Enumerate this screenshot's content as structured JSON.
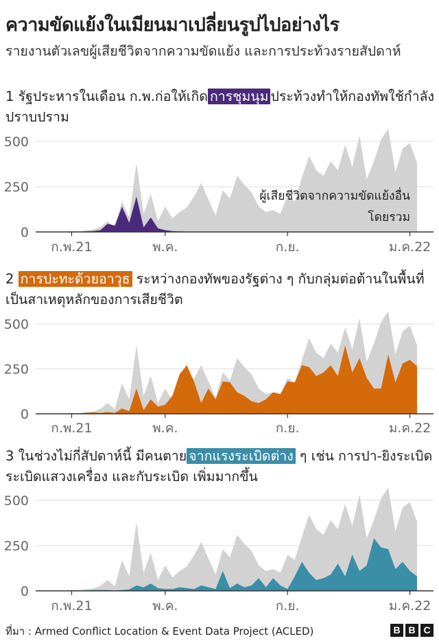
{
  "header": {
    "title": "ความขัดแย้งในเมียนมาเปลี่ยนรูปไปอย่างไร",
    "subtitle": "รายงานตัวเลขผู้เสียชีวิตจากความขัดแย้ง และการประท้วงรายสัปดาห์"
  },
  "panels": [
    {
      "pre": "1 รัฐประหารในเดือน ก.พ.ก่อให้เกิด",
      "highlight": "การชุมนุม",
      "post": "ประท้วงทำให้กองทัพใช้กำลังปราบปราม"
    },
    {
      "pre": "2 ",
      "highlight": "การปะทะด้วยอาวุธ",
      "post": " ระหว่างกองทัพของรัฐต่าง ๆ กับกลุ่มต่อต้านในพื้นที่ เป็นสาเหตุหลักของการเสียชีวิต"
    },
    {
      "pre": "3 ในช่วงไม่กี่สัปดาห์นี้ มีคนตาย",
      "highlight": "จากแรงระเบิดต่าง",
      "post": " ๆ เช่น การปา-ยิงระเบิด  ระเบิดแสวงเครื่อง และกับระเบิด เพิ่มมากขึ้น"
    }
  ],
  "annotation": {
    "line1": "ผู้เสียชีวิตจากความขัดแย้งอื่น",
    "line2": "โดยรวม"
  },
  "footer": {
    "source": "ที่มา : Armed Conflict Location & Event Data Project (ACLED)",
    "logo": [
      "B",
      "B",
      "C"
    ]
  },
  "colors": {
    "total": "#d2d2d2",
    "protests": "#4b2a7b",
    "battles": "#d46a0a",
    "explosions": "#3a8ea8",
    "grid": "#dddddd",
    "baseline": "#333333"
  },
  "chart_data": [
    {
      "type": "area",
      "ylim": [
        0,
        500
      ],
      "yticks": [
        0,
        250,
        500
      ],
      "xticks": [
        {
          "label": "ก.พ.21",
          "week": 5
        },
        {
          "label": "พ.ค.",
          "week": 18
        },
        {
          "label": "ก.ย.",
          "week": 35
        },
        {
          "label": "ม.ค.22",
          "week": 52
        }
      ],
      "x": [
        0,
        1,
        2,
        3,
        4,
        5,
        6,
        7,
        8,
        9,
        10,
        11,
        12,
        13,
        14,
        15,
        16,
        17,
        18,
        19,
        20,
        21,
        22,
        23,
        24,
        25,
        26,
        27,
        28,
        29,
        30,
        31,
        32,
        33,
        34,
        35,
        36,
        37,
        38,
        39,
        40,
        41,
        42,
        43,
        44,
        45,
        46,
        47,
        48,
        49,
        50,
        51,
        52,
        53
      ],
      "series": [
        {
          "key": "total",
          "values": [
            0,
            0,
            0,
            0,
            2,
            5,
            3,
            10,
            12,
            28,
            60,
            25,
            170,
            80,
            380,
            100,
            210,
            60,
            140,
            75,
            110,
            135,
            195,
            270,
            180,
            90,
            230,
            185,
            310,
            260,
            220,
            140,
            110,
            120,
            100,
            200,
            170,
            300,
            420,
            340,
            310,
            390,
            340,
            480,
            360,
            530,
            290,
            390,
            510,
            570,
            330,
            460,
            490,
            380
          ]
        },
        {
          "key": "protests",
          "values": [
            0,
            0,
            0,
            0,
            1,
            2,
            1,
            3,
            5,
            10,
            45,
            35,
            140,
            50,
            195,
            25,
            80,
            20,
            10,
            5,
            3,
            2,
            0,
            0,
            0,
            0,
            0,
            0,
            0,
            0,
            0,
            0,
            0,
            0,
            0,
            0,
            0,
            0,
            0,
            0,
            0,
            0,
            0,
            0,
            0,
            0,
            0,
            0,
            0,
            0,
            0,
            0,
            0,
            0
          ]
        }
      ],
      "annotation": "ผู้เสียชีวิตจากความขัดแย้งอื่น โดยรวม"
    },
    {
      "type": "area",
      "ylim": [
        0,
        500
      ],
      "yticks": [
        0,
        250,
        500
      ],
      "xticks": [
        {
          "label": "ก.พ.21",
          "week": 5
        },
        {
          "label": "พ.ค.",
          "week": 18
        },
        {
          "label": "ก.ย.",
          "week": 35
        },
        {
          "label": "ม.ค.22",
          "week": 52
        }
      ],
      "x": [
        0,
        1,
        2,
        3,
        4,
        5,
        6,
        7,
        8,
        9,
        10,
        11,
        12,
        13,
        14,
        15,
        16,
        17,
        18,
        19,
        20,
        21,
        22,
        23,
        24,
        25,
        26,
        27,
        28,
        29,
        30,
        31,
        32,
        33,
        34,
        35,
        36,
        37,
        38,
        39,
        40,
        41,
        42,
        43,
        44,
        45,
        46,
        47,
        48,
        49,
        50,
        51,
        52,
        53
      ],
      "series": [
        {
          "key": "total",
          "values": [
            0,
            0,
            0,
            0,
            2,
            5,
            3,
            10,
            12,
            28,
            60,
            25,
            170,
            80,
            380,
            100,
            210,
            60,
            140,
            75,
            110,
            135,
            195,
            270,
            180,
            90,
            230,
            185,
            310,
            260,
            220,
            140,
            110,
            120,
            100,
            200,
            170,
            300,
            420,
            340,
            310,
            390,
            340,
            480,
            360,
            530,
            290,
            390,
            510,
            570,
            330,
            460,
            490,
            380
          ]
        },
        {
          "key": "battles",
          "values": [
            0,
            0,
            0,
            0,
            1,
            3,
            2,
            5,
            8,
            5,
            10,
            5,
            30,
            15,
            140,
            20,
            80,
            40,
            50,
            100,
            220,
            270,
            180,
            60,
            140,
            80,
            180,
            175,
            120,
            100,
            70,
            60,
            80,
            120,
            110,
            180,
            175,
            270,
            260,
            210,
            230,
            270,
            210,
            380,
            230,
            310,
            200,
            140,
            140,
            330,
            175,
            280,
            300,
            265
          ]
        }
      ]
    },
    {
      "type": "area",
      "ylim": [
        0,
        500
      ],
      "yticks": [
        0,
        250,
        500
      ],
      "xticks": [
        {
          "label": "ก.พ.21",
          "week": 5
        },
        {
          "label": "พ.ค.",
          "week": 18
        },
        {
          "label": "ก.ย.",
          "week": 35
        },
        {
          "label": "ม.ค.22",
          "week": 52
        }
      ],
      "x": [
        0,
        1,
        2,
        3,
        4,
        5,
        6,
        7,
        8,
        9,
        10,
        11,
        12,
        13,
        14,
        15,
        16,
        17,
        18,
        19,
        20,
        21,
        22,
        23,
        24,
        25,
        26,
        27,
        28,
        29,
        30,
        31,
        32,
        33,
        34,
        35,
        36,
        37,
        38,
        39,
        40,
        41,
        42,
        43,
        44,
        45,
        46,
        47,
        48,
        49,
        50,
        51,
        52,
        53
      ],
      "series": [
        {
          "key": "total",
          "values": [
            0,
            0,
            0,
            0,
            2,
            5,
            3,
            10,
            12,
            28,
            60,
            25,
            170,
            80,
            380,
            100,
            210,
            60,
            140,
            75,
            110,
            135,
            195,
            270,
            180,
            90,
            230,
            185,
            310,
            260,
            220,
            140,
            110,
            120,
            100,
            200,
            170,
            300,
            420,
            340,
            310,
            390,
            340,
            480,
            360,
            530,
            290,
            390,
            510,
            570,
            330,
            460,
            490,
            380
          ]
        },
        {
          "key": "explosions",
          "values": [
            0,
            0,
            0,
            0,
            0,
            1,
            0,
            2,
            5,
            5,
            5,
            2,
            5,
            8,
            30,
            20,
            40,
            15,
            10,
            10,
            20,
            15,
            10,
            30,
            20,
            10,
            110,
            15,
            40,
            20,
            30,
            70,
            20,
            70,
            30,
            10,
            80,
            160,
            100,
            60,
            70,
            90,
            150,
            80,
            200,
            110,
            140,
            290,
            240,
            230,
            120,
            160,
            110,
            80
          ]
        }
      ]
    }
  ]
}
